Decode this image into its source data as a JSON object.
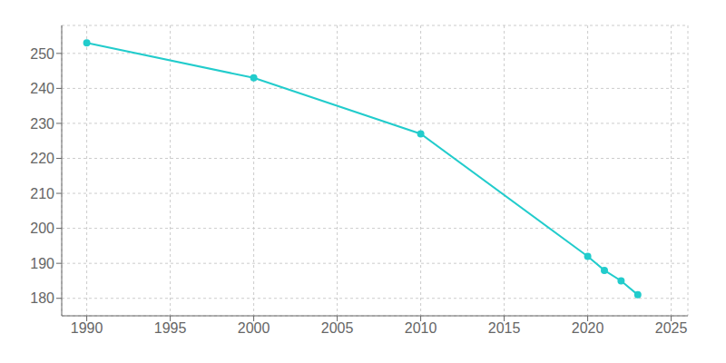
{
  "chart_data": {
    "type": "line",
    "x": [
      1990,
      2000,
      2010,
      2020,
      2021,
      2022,
      2023
    ],
    "values": [
      253,
      243,
      227,
      192,
      188,
      185,
      181
    ],
    "color": "#22CCCC",
    "marker": "circle",
    "xlim": [
      1988.5,
      2026
    ],
    "ylim": [
      175,
      258
    ],
    "xticks": [
      1990,
      1995,
      2000,
      2005,
      2010,
      2015,
      2020,
      2025
    ],
    "yticks": [
      180,
      190,
      200,
      210,
      220,
      230,
      240,
      250
    ],
    "grid": true
  }
}
